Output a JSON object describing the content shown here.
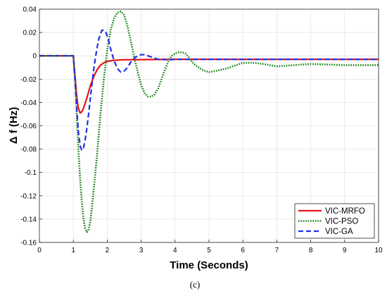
{
  "chart_data": {
    "type": "line",
    "xlabel": "Time (Seconds)",
    "ylabel": "Δ f (Hz)",
    "xlim": [
      0,
      10
    ],
    "ylim": [
      -0.16,
      0.04
    ],
    "xticks": [
      "0",
      "1",
      "2",
      "3",
      "4",
      "5",
      "6",
      "7",
      "8",
      "9",
      "10"
    ],
    "yticks": [
      "-0.16",
      "-0.14",
      "-0.12",
      "-0.1",
      "-0.08",
      "-0.06",
      "-0.04",
      "-0.02",
      "0",
      "0.02",
      "0.04"
    ],
    "grid": true,
    "legend_position": "bottom-right",
    "caption": "(c)",
    "colors": {
      "VIC-MRFO": "#e8141b",
      "VIC-PSO": "#128012",
      "VIC-GA": "#1f2fe6"
    },
    "series": [
      {
        "name": "VIC-MRFO",
        "style": "solid",
        "x": [
          0,
          1.0,
          1.05,
          1.1,
          1.15,
          1.2,
          1.25,
          1.3,
          1.4,
          1.5,
          1.6,
          1.7,
          1.8,
          1.9,
          2.0,
          2.2,
          2.5,
          3.0,
          4.0,
          5.0,
          6.0,
          8.0,
          10.0
        ],
        "y": [
          0,
          0,
          -0.017,
          -0.035,
          -0.045,
          -0.049,
          -0.048,
          -0.045,
          -0.036,
          -0.026,
          -0.018,
          -0.012,
          -0.008,
          -0.006,
          -0.0048,
          -0.0038,
          -0.0034,
          -0.0033,
          -0.003,
          -0.003,
          -0.003,
          -0.003,
          -0.003
        ]
      },
      {
        "name": "VIC-PSO",
        "style": "dotted",
        "x": [
          0,
          1.0,
          1.05,
          1.1,
          1.15,
          1.2,
          1.25,
          1.3,
          1.35,
          1.4,
          1.45,
          1.5,
          1.55,
          1.6,
          1.7,
          1.8,
          1.9,
          2.0,
          2.1,
          2.2,
          2.3,
          2.4,
          2.5,
          2.6,
          2.7,
          2.8,
          2.9,
          3.0,
          3.1,
          3.2,
          3.3,
          3.4,
          3.5,
          3.6,
          3.7,
          3.8,
          3.9,
          4.0,
          4.1,
          4.2,
          4.3,
          4.4,
          4.5,
          4.6,
          4.8,
          5.0,
          5.2,
          5.5,
          5.8,
          6.0,
          6.3,
          6.6,
          7.0,
          7.5,
          8.0,
          8.5,
          9.0,
          9.5,
          10.0
        ],
        "y": [
          0,
          0,
          -0.02,
          -0.05,
          -0.08,
          -0.105,
          -0.125,
          -0.14,
          -0.148,
          -0.151,
          -0.149,
          -0.142,
          -0.13,
          -0.115,
          -0.085,
          -0.05,
          -0.02,
          0.005,
          0.022,
          0.032,
          0.037,
          0.038,
          0.035,
          0.025,
          0.012,
          -0.002,
          -0.014,
          -0.025,
          -0.032,
          -0.035,
          -0.035,
          -0.033,
          -0.028,
          -0.02,
          -0.012,
          -0.005,
          0.0,
          0.002,
          0.003,
          0.003,
          0.002,
          -0.001,
          -0.005,
          -0.008,
          -0.012,
          -0.014,
          -0.013,
          -0.011,
          -0.008,
          -0.006,
          -0.006,
          -0.007,
          -0.009,
          -0.008,
          -0.007,
          -0.0075,
          -0.008,
          -0.008,
          -0.008
        ]
      },
      {
        "name": "VIC-GA",
        "style": "dashed",
        "x": [
          0,
          1.0,
          1.05,
          1.1,
          1.15,
          1.2,
          1.25,
          1.3,
          1.35,
          1.4,
          1.45,
          1.5,
          1.55,
          1.6,
          1.65,
          1.7,
          1.75,
          1.8,
          1.85,
          1.9,
          1.95,
          2.0,
          2.05,
          2.1,
          2.2,
          2.3,
          2.4,
          2.5,
          2.6,
          2.7,
          2.8,
          2.9,
          3.0,
          3.1,
          3.2,
          3.3,
          3.4,
          3.5,
          3.6,
          3.8,
          4.0,
          4.5,
          5.0,
          6.0,
          8.0,
          10.0
        ],
        "y": [
          0,
          0,
          -0.02,
          -0.045,
          -0.065,
          -0.077,
          -0.081,
          -0.079,
          -0.072,
          -0.062,
          -0.05,
          -0.037,
          -0.024,
          -0.012,
          -0.002,
          0.007,
          0.014,
          0.019,
          0.022,
          0.022,
          0.021,
          0.017,
          0.012,
          0.006,
          -0.004,
          -0.011,
          -0.014,
          -0.013,
          -0.01,
          -0.005,
          -0.002,
          0.0,
          0.001,
          0.001,
          0.0,
          -0.001,
          -0.002,
          -0.003,
          -0.003,
          -0.0035,
          -0.003,
          -0.003,
          -0.003,
          -0.003,
          -0.003,
          -0.003
        ]
      }
    ]
  }
}
